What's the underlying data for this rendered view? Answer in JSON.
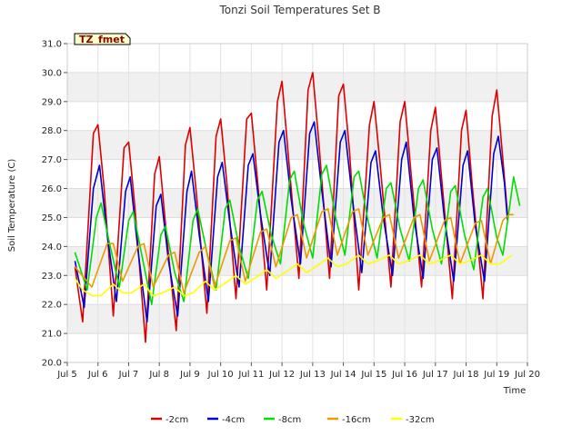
{
  "chart_data": {
    "type": "line",
    "title": "Tonzi Soil Temperatures Set B",
    "xlabel": "Time",
    "ylabel": "Soil Temperature (C)",
    "site_tag": "TZ_fmet",
    "xlim": [
      5,
      20
    ],
    "ylim": [
      20.0,
      31.0
    ],
    "x_ticks": [
      5,
      6,
      7,
      8,
      9,
      10,
      11,
      12,
      13,
      14,
      15,
      16,
      17,
      18,
      19,
      20
    ],
    "x_tick_labels": [
      "Jul 5",
      "Jul 6",
      "Jul 7",
      "Jul 8",
      "Jul 9",
      "Jul 10",
      "Jul 11",
      "Jul 12",
      "Jul 13",
      "Jul 14",
      "Jul 15",
      "Jul 16",
      "Jul 17",
      "Jul 18",
      "Jul 19",
      "Jul 20"
    ],
    "y_ticks": [
      20.0,
      21.0,
      22.0,
      23.0,
      24.0,
      25.0,
      26.0,
      27.0,
      28.0,
      29.0,
      30.0,
      31.0
    ],
    "y_tick_labels": [
      "20.0",
      "21.0",
      "22.0",
      "23.0",
      "24.0",
      "25.0",
      "26.0",
      "27.0",
      "28.0",
      "29.0",
      "30.0",
      "31.0"
    ],
    "grid": true,
    "background_bands": true,
    "legend_position": "bottom",
    "series": [
      {
        "name": "-2cm",
        "color": "#dd0000",
        "points": [
          [
            5.25,
            23.3
          ],
          [
            5.5,
            21.4
          ],
          [
            5.85,
            27.9
          ],
          [
            6.0,
            28.2
          ],
          [
            6.2,
            26.0
          ],
          [
            6.5,
            21.6
          ],
          [
            6.85,
            27.4
          ],
          [
            7.0,
            27.6
          ],
          [
            7.2,
            25.4
          ],
          [
            7.55,
            20.7
          ],
          [
            7.85,
            26.5
          ],
          [
            8.0,
            27.1
          ],
          [
            8.2,
            24.8
          ],
          [
            8.55,
            21.1
          ],
          [
            8.85,
            27.5
          ],
          [
            9.0,
            28.1
          ],
          [
            9.2,
            25.9
          ],
          [
            9.55,
            21.7
          ],
          [
            9.85,
            27.8
          ],
          [
            10.0,
            28.4
          ],
          [
            10.2,
            26.2
          ],
          [
            10.5,
            22.2
          ],
          [
            10.85,
            28.4
          ],
          [
            11.0,
            28.6
          ],
          [
            11.2,
            26.3
          ],
          [
            11.5,
            22.5
          ],
          [
            11.85,
            29.0
          ],
          [
            12.0,
            29.7
          ],
          [
            12.2,
            27.2
          ],
          [
            12.55,
            22.9
          ],
          [
            12.85,
            29.4
          ],
          [
            13.0,
            30.0
          ],
          [
            13.2,
            27.6
          ],
          [
            13.55,
            22.9
          ],
          [
            13.85,
            29.2
          ],
          [
            14.0,
            29.6
          ],
          [
            14.2,
            27.3
          ],
          [
            14.5,
            22.5
          ],
          [
            14.85,
            28.2
          ],
          [
            15.0,
            29.0
          ],
          [
            15.2,
            26.8
          ],
          [
            15.55,
            22.6
          ],
          [
            15.85,
            28.3
          ],
          [
            16.0,
            29.0
          ],
          [
            16.2,
            26.6
          ],
          [
            16.55,
            22.6
          ],
          [
            16.85,
            28.0
          ],
          [
            17.0,
            28.8
          ],
          [
            17.2,
            26.4
          ],
          [
            17.55,
            22.2
          ],
          [
            17.85,
            28.0
          ],
          [
            18.0,
            28.7
          ],
          [
            18.2,
            26.1
          ],
          [
            18.55,
            22.2
          ],
          [
            18.85,
            28.5
          ],
          [
            19.0,
            29.4
          ],
          [
            19.2,
            27.0
          ],
          [
            19.35,
            25.1
          ]
        ]
      },
      {
        "name": "-4cm",
        "color": "#0000cc",
        "points": [
          [
            5.25,
            23.5
          ],
          [
            5.55,
            21.9
          ],
          [
            5.85,
            26.0
          ],
          [
            6.05,
            26.8
          ],
          [
            6.3,
            24.4
          ],
          [
            6.6,
            22.1
          ],
          [
            6.9,
            25.9
          ],
          [
            7.05,
            26.4
          ],
          [
            7.3,
            23.9
          ],
          [
            7.6,
            21.4
          ],
          [
            7.9,
            25.4
          ],
          [
            8.05,
            25.8
          ],
          [
            8.3,
            23.5
          ],
          [
            8.6,
            21.6
          ],
          [
            8.9,
            25.9
          ],
          [
            9.05,
            26.6
          ],
          [
            9.3,
            24.4
          ],
          [
            9.6,
            22.1
          ],
          [
            9.9,
            26.4
          ],
          [
            10.05,
            26.9
          ],
          [
            10.3,
            24.8
          ],
          [
            10.6,
            22.6
          ],
          [
            10.9,
            26.8
          ],
          [
            11.05,
            27.2
          ],
          [
            11.3,
            25.1
          ],
          [
            11.6,
            23.0
          ],
          [
            11.9,
            27.6
          ],
          [
            12.05,
            28.0
          ],
          [
            12.3,
            25.6
          ],
          [
            12.6,
            23.4
          ],
          [
            12.9,
            27.9
          ],
          [
            13.05,
            28.3
          ],
          [
            13.3,
            25.9
          ],
          [
            13.6,
            23.3
          ],
          [
            13.9,
            27.6
          ],
          [
            14.05,
            28.0
          ],
          [
            14.3,
            25.6
          ],
          [
            14.6,
            23.1
          ],
          [
            14.9,
            26.9
          ],
          [
            15.05,
            27.3
          ],
          [
            15.3,
            25.0
          ],
          [
            15.6,
            23.0
          ],
          [
            15.9,
            27.0
          ],
          [
            16.05,
            27.6
          ],
          [
            16.3,
            25.0
          ],
          [
            16.6,
            22.9
          ],
          [
            16.9,
            27.0
          ],
          [
            17.05,
            27.4
          ],
          [
            17.3,
            24.9
          ],
          [
            17.6,
            22.8
          ],
          [
            17.9,
            26.8
          ],
          [
            18.05,
            27.3
          ],
          [
            18.3,
            24.7
          ],
          [
            18.6,
            22.8
          ],
          [
            18.9,
            27.2
          ],
          [
            19.05,
            27.8
          ],
          [
            19.25,
            26.2
          ],
          [
            19.35,
            24.9
          ]
        ]
      },
      {
        "name": "-8cm",
        "color": "#00dd00",
        "points": [
          [
            5.25,
            23.8
          ],
          [
            5.65,
            22.5
          ],
          [
            5.95,
            25.0
          ],
          [
            6.1,
            25.5
          ],
          [
            6.4,
            24.0
          ],
          [
            6.7,
            22.6
          ],
          [
            7.0,
            24.9
          ],
          [
            7.15,
            25.2
          ],
          [
            7.45,
            23.6
          ],
          [
            7.75,
            22.0
          ],
          [
            8.05,
            24.4
          ],
          [
            8.2,
            24.7
          ],
          [
            8.5,
            23.1
          ],
          [
            8.8,
            22.1
          ],
          [
            9.1,
            24.9
          ],
          [
            9.25,
            25.3
          ],
          [
            9.55,
            23.8
          ],
          [
            9.85,
            22.5
          ],
          [
            10.15,
            25.3
          ],
          [
            10.3,
            25.6
          ],
          [
            10.6,
            24.0
          ],
          [
            10.9,
            22.9
          ],
          [
            11.2,
            25.6
          ],
          [
            11.35,
            25.9
          ],
          [
            11.65,
            24.4
          ],
          [
            11.95,
            23.4
          ],
          [
            12.25,
            26.3
          ],
          [
            12.4,
            26.6
          ],
          [
            12.7,
            24.8
          ],
          [
            13.0,
            23.6
          ],
          [
            13.3,
            26.5
          ],
          [
            13.45,
            26.8
          ],
          [
            13.75,
            25.0
          ],
          [
            14.05,
            23.7
          ],
          [
            14.35,
            26.4
          ],
          [
            14.5,
            26.6
          ],
          [
            14.8,
            24.9
          ],
          [
            15.1,
            23.6
          ],
          [
            15.4,
            26.0
          ],
          [
            15.55,
            26.2
          ],
          [
            15.85,
            24.6
          ],
          [
            16.15,
            23.5
          ],
          [
            16.45,
            26.0
          ],
          [
            16.6,
            26.3
          ],
          [
            16.9,
            24.6
          ],
          [
            17.2,
            23.4
          ],
          [
            17.5,
            25.9
          ],
          [
            17.65,
            26.1
          ],
          [
            17.95,
            24.4
          ],
          [
            18.25,
            23.2
          ],
          [
            18.55,
            25.7
          ],
          [
            18.7,
            26.0
          ],
          [
            19.0,
            24.3
          ],
          [
            19.2,
            23.7
          ],
          [
            19.45,
            25.6
          ],
          [
            19.55,
            26.4
          ],
          [
            19.75,
            25.4
          ]
        ]
      },
      {
        "name": "-16cm",
        "color": "#ee9900",
        "points": [
          [
            5.25,
            23.3
          ],
          [
            5.8,
            22.6
          ],
          [
            6.3,
            24.1
          ],
          [
            6.5,
            24.1
          ],
          [
            6.8,
            22.8
          ],
          [
            7.3,
            24.0
          ],
          [
            7.5,
            24.1
          ],
          [
            7.8,
            22.6
          ],
          [
            8.3,
            23.7
          ],
          [
            8.5,
            23.8
          ],
          [
            8.8,
            22.4
          ],
          [
            9.3,
            23.8
          ],
          [
            9.5,
            24.0
          ],
          [
            9.8,
            22.6
          ],
          [
            10.3,
            24.2
          ],
          [
            10.5,
            24.3
          ],
          [
            10.8,
            22.8
          ],
          [
            11.3,
            24.5
          ],
          [
            11.5,
            24.6
          ],
          [
            11.8,
            23.3
          ],
          [
            12.3,
            25.0
          ],
          [
            12.5,
            25.1
          ],
          [
            12.8,
            23.6
          ],
          [
            13.3,
            25.2
          ],
          [
            13.5,
            25.3
          ],
          [
            13.8,
            23.7
          ],
          [
            14.3,
            25.2
          ],
          [
            14.5,
            25.3
          ],
          [
            14.8,
            23.7
          ],
          [
            15.3,
            25.0
          ],
          [
            15.5,
            25.1
          ],
          [
            15.8,
            23.6
          ],
          [
            16.3,
            25.0
          ],
          [
            16.5,
            25.1
          ],
          [
            16.8,
            23.5
          ],
          [
            17.3,
            24.9
          ],
          [
            17.5,
            25.0
          ],
          [
            17.8,
            23.4
          ],
          [
            18.3,
            24.8
          ],
          [
            18.5,
            24.9
          ],
          [
            18.8,
            23.4
          ],
          [
            19.2,
            24.9
          ],
          [
            19.4,
            25.1
          ],
          [
            19.55,
            25.1
          ]
        ]
      },
      {
        "name": "-32cm",
        "color": "#ffff00",
        "points": [
          [
            5.25,
            22.9
          ],
          [
            5.5,
            22.5
          ],
          [
            5.8,
            22.3
          ],
          [
            6.1,
            22.3
          ],
          [
            6.5,
            22.7
          ],
          [
            6.8,
            22.4
          ],
          [
            7.1,
            22.4
          ],
          [
            7.5,
            22.7
          ],
          [
            7.8,
            22.3
          ],
          [
            8.1,
            22.4
          ],
          [
            8.5,
            22.6
          ],
          [
            8.8,
            22.3
          ],
          [
            9.1,
            22.4
          ],
          [
            9.5,
            22.8
          ],
          [
            9.8,
            22.5
          ],
          [
            10.1,
            22.7
          ],
          [
            10.5,
            23.0
          ],
          [
            10.8,
            22.7
          ],
          [
            11.1,
            22.9
          ],
          [
            11.5,
            23.2
          ],
          [
            11.8,
            22.9
          ],
          [
            12.1,
            23.1
          ],
          [
            12.5,
            23.4
          ],
          [
            12.8,
            23.1
          ],
          [
            13.1,
            23.3
          ],
          [
            13.5,
            23.6
          ],
          [
            13.8,
            23.3
          ],
          [
            14.1,
            23.4
          ],
          [
            14.5,
            23.7
          ],
          [
            14.8,
            23.4
          ],
          [
            15.1,
            23.5
          ],
          [
            15.5,
            23.7
          ],
          [
            15.8,
            23.4
          ],
          [
            16.1,
            23.5
          ],
          [
            16.5,
            23.7
          ],
          [
            16.8,
            23.4
          ],
          [
            17.1,
            23.5
          ],
          [
            17.5,
            23.7
          ],
          [
            17.8,
            23.4
          ],
          [
            18.1,
            23.5
          ],
          [
            18.5,
            23.7
          ],
          [
            18.8,
            23.4
          ],
          [
            19.1,
            23.4
          ],
          [
            19.5,
            23.7
          ]
        ]
      }
    ]
  }
}
